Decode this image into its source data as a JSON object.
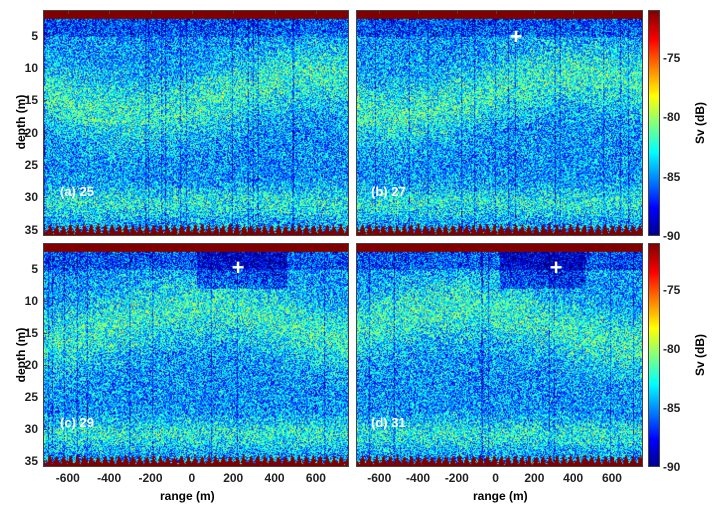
{
  "chart_data": {
    "type": "heatmap",
    "xlabel": "range (m)",
    "ylabel": "depth (m)",
    "xlim": [
      -720,
      760
    ],
    "ylim": [
      36,
      1
    ],
    "x_ticks": [
      "-600",
      "-400",
      "-200",
      "0",
      "200",
      "400",
      "600"
    ],
    "y_ticks": [
      "5",
      "10",
      "15",
      "20",
      "25",
      "30",
      "35"
    ],
    "colorbar": {
      "label": "Sv (dB)",
      "range": [
        -90,
        -71
      ],
      "ticks": [
        "-75",
        "-80",
        "-85",
        "-90"
      ],
      "colormap": "jet"
    },
    "panels": [
      {
        "label": "(a) 25",
        "marker": null
      },
      {
        "label": "(b) 27",
        "marker": {
          "range": 100,
          "depth": 5,
          "symbol": "+"
        }
      },
      {
        "label": "(c) 29",
        "marker": {
          "range": 220,
          "depth": 5,
          "symbol": "+"
        }
      },
      {
        "label": "(d) 31",
        "marker": {
          "range": 300,
          "depth": 5,
          "symbol": "+"
        }
      }
    ]
  }
}
